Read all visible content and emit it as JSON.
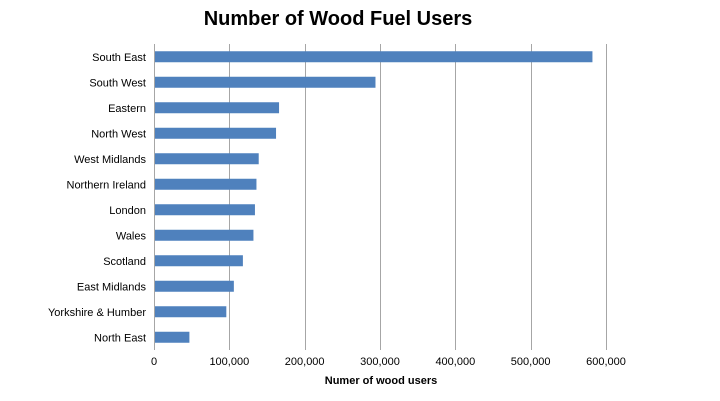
{
  "chart_data": {
    "type": "bar",
    "orientation": "horizontal",
    "title": "Number of Wood Fuel Users",
    "xlabel": "Numer of wood users",
    "ylabel": "",
    "categories": [
      "South East",
      "South West",
      "Eastern",
      "North West",
      "West Midlands",
      "Northern Ireland",
      "London",
      "Wales",
      "Scotland",
      "East Midlands",
      "Yorkshire & Humber",
      "North East"
    ],
    "values": [
      582000,
      294000,
      166000,
      162000,
      139000,
      136000,
      134000,
      132000,
      118000,
      106000,
      96000,
      47000
    ],
    "xlim": [
      0,
      600000
    ],
    "xticks": [
      0,
      100000,
      200000,
      300000,
      400000,
      500000,
      600000
    ],
    "xtick_labels": [
      "0",
      "100,000",
      "200,000",
      "300,000",
      "400,000",
      "500,000",
      "600,000"
    ],
    "grid": "vertical",
    "legend": "none",
    "bar_color": "#4f81bd"
  }
}
